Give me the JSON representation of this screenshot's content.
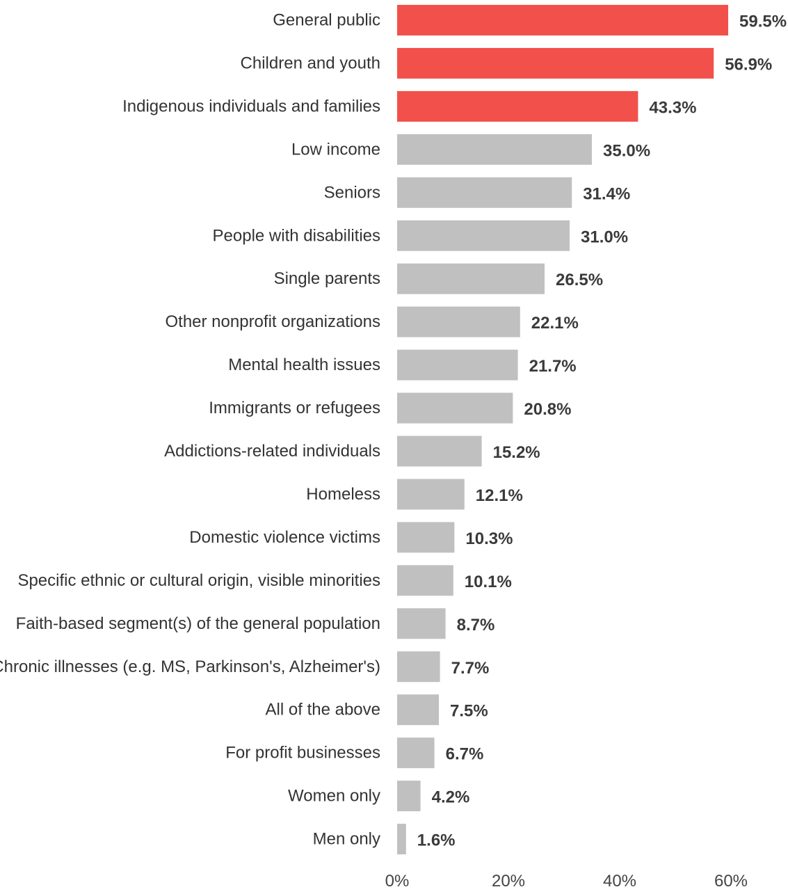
{
  "chart_data": {
    "type": "bar",
    "orientation": "horizontal",
    "categories": [
      "General public",
      "Children and youth",
      "Indigenous individuals and families",
      "Low income",
      "Seniors",
      "People with disabilities",
      "Single parents",
      "Other nonprofit organizations",
      "Mental health issues",
      "Immigrants or refugees",
      "Addictions-related individuals",
      "Homeless",
      "Domestic violence victims",
      "Specific ethnic or cultural origin, visible minorities",
      "Faith-based segment(s) of the general population",
      "Chronic illnesses (e.g. MS, Parkinson's, Alzheimer's)",
      "All of the above",
      "For profit businesses",
      "Women only",
      "Men only"
    ],
    "values": [
      59.5,
      56.9,
      43.3,
      35.0,
      31.4,
      31.0,
      26.5,
      22.1,
      21.7,
      20.8,
      15.2,
      12.1,
      10.3,
      10.1,
      8.7,
      7.7,
      7.5,
      6.7,
      4.2,
      1.6
    ],
    "value_labels": [
      "59.5%",
      "56.9%",
      "43.3%",
      "35.0%",
      "31.4%",
      "31.0%",
      "26.5%",
      "22.1%",
      "21.7%",
      "20.8%",
      "15.2%",
      "12.1%",
      "10.3%",
      "10.1%",
      "8.7%",
      "7.7%",
      "7.5%",
      "6.7%",
      "4.2%",
      "1.6%"
    ],
    "highlighted_count": 3,
    "colors": {
      "highlight": "#f2504a",
      "default": "#c0c0c0"
    },
    "x_ticks": [
      0,
      20,
      40,
      60
    ],
    "x_tick_labels": [
      "0%",
      "20%",
      "40%",
      "60%"
    ],
    "xlim": [
      0,
      60
    ],
    "title": "",
    "xlabel": "",
    "ylabel": "",
    "grid": false,
    "legend": "none"
  }
}
